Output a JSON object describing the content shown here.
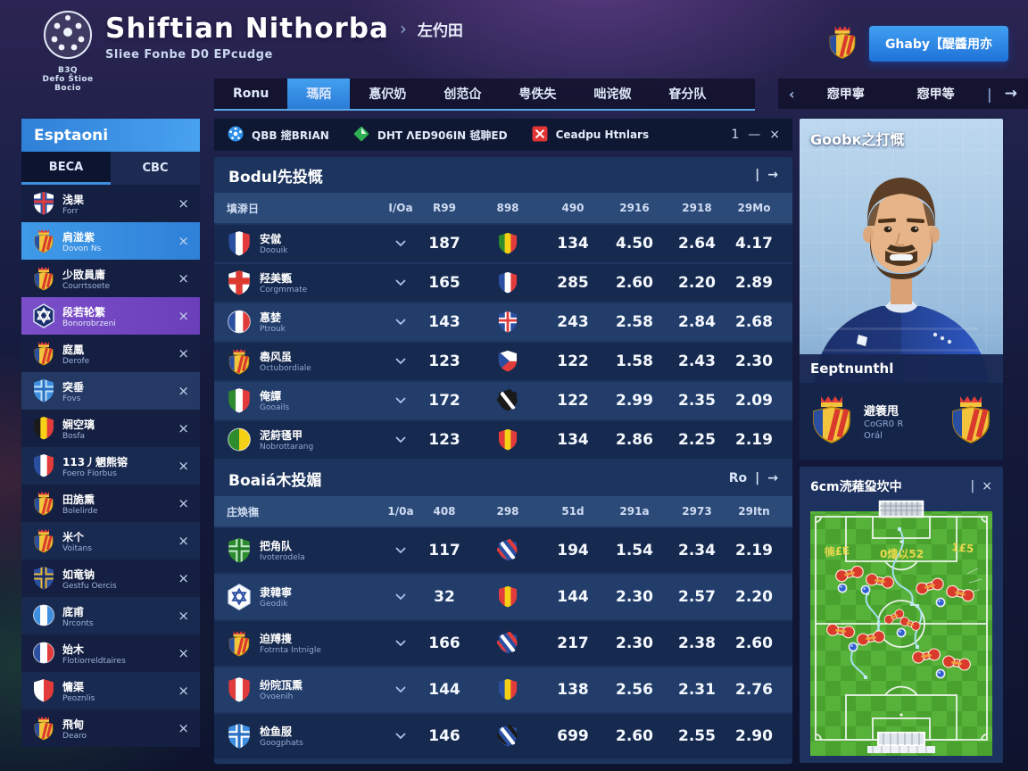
{
  "header": {
    "logo": [
      "B3Q",
      "Defo Štioe",
      "Bocio"
    ],
    "title": "Shiftian Nithorba",
    "crumb_sep": "›",
    "crumb": "左仢田",
    "subtitle": "Sliee Fonbe D0 EPcudge",
    "account_button": "Ghaby【醍醬用亦"
  },
  "nav": {
    "tabs": [
      {
        "label": "Ronu",
        "active": false
      },
      {
        "label": "瑪陌",
        "active": true
      },
      {
        "label": "惪伬奶",
        "active": false
      },
      {
        "label": "创范仚",
        "active": false
      },
      {
        "label": "甹佚失",
        "active": false
      },
      {
        "label": "咄诧伮",
        "active": false
      },
      {
        "label": "眘分队",
        "active": false
      }
    ],
    "league": {
      "prev": "‹",
      "labels": [
        "惌甲寧",
        "惌甲等"
      ],
      "sep": "|",
      "next": "→"
    }
  },
  "sidebar": {
    "title": "Esptaoni",
    "tabs": [
      {
        "label": "BECA",
        "active": true
      },
      {
        "label": "CBC",
        "active": false
      }
    ],
    "close_glyph": "×",
    "items": [
      {
        "name": "浅果",
        "sub": "Forr",
        "hl": null,
        "icon": {
          "kind": "cross",
          "colors": [
            "#ffffff",
            "#2b4fa0",
            "#e23b3b"
          ]
        }
      },
      {
        "name": "肩湴紫",
        "sub": "Dovon Ns",
        "hl": "blue",
        "icon": {
          "kind": "crest"
        }
      },
      {
        "name": "少敃員庸",
        "sub": "Courrtsoete",
        "hl": null,
        "icon": {
          "kind": "crest"
        }
      },
      {
        "name": "段若轮繁",
        "sub": "Bonorobrzeni",
        "hl": "purple",
        "icon": {
          "kind": "hex",
          "colors": [
            "#1b2f6e",
            "#ffffff"
          ]
        }
      },
      {
        "name": "庭鳳",
        "sub": "Derofe",
        "hl": null,
        "icon": {
          "kind": "crest"
        }
      },
      {
        "name": "突垂",
        "sub": "Fovs",
        "hl": "light",
        "icon": {
          "kind": "cross",
          "colors": [
            "#3f8fe0",
            "#bfe2f8",
            "#2a6fc0"
          ]
        }
      },
      {
        "name": "娴空璃",
        "sub": "Bosfa",
        "hl": null,
        "icon": {
          "kind": "shield",
          "colors": [
            "#1a1a1a",
            "#f7d117",
            "#e23b3b"
          ]
        }
      },
      {
        "name": "113丿魍熊镕",
        "sub": "Foero Fíorbus",
        "hl": null,
        "icon": {
          "kind": "shield",
          "colors": [
            "#2b4fa0",
            "#ffffff",
            "#e23b3b"
          ]
        }
      },
      {
        "name": "田㫉熏",
        "sub": "Bolelirde",
        "hl": null,
        "icon": {
          "kind": "crest"
        }
      },
      {
        "name": "米个",
        "sub": "Voitans",
        "hl": null,
        "icon": {
          "kind": "crest"
        }
      },
      {
        "name": "如竜钠",
        "sub": "Gestfu Oercis",
        "hl": null,
        "icon": {
          "kind": "cross",
          "colors": [
            "#2b4fa0",
            "#e8b93b",
            "#1a2f6e"
          ]
        }
      },
      {
        "name": "底甫",
        "sub": "Nrconts",
        "hl": null,
        "icon": {
          "kind": "circle",
          "colors": [
            "#3f8fe0",
            "#ffffff",
            "#3f8fe0"
          ]
        }
      },
      {
        "name": "始木",
        "sub": "Flotiorreldtaires",
        "hl": null,
        "icon": {
          "kind": "circle",
          "colors": [
            "#2b4fa0",
            "#ffffff",
            "#e23b3b"
          ]
        }
      },
      {
        "name": "慵渠",
        "sub": "Peoznlis",
        "hl": null,
        "icon": {
          "kind": "shield",
          "colors": [
            "#ffffff",
            "#e23b3b"
          ]
        }
      },
      {
        "name": "飛甸",
        "sub": "Dearo",
        "hl": null,
        "icon": {
          "kind": "crest"
        }
      }
    ]
  },
  "filters": {
    "items": [
      {
        "icon": "globe",
        "label": "QBB 㨸BRIAN"
      },
      {
        "icon": "diamond",
        "label": "DHT ΛED906IN 㲓䎶ED"
      },
      {
        "icon": "close",
        "label": "Ceadpu Htnlars"
      }
    ],
    "count": "1",
    "minimize": "—",
    "close": "×"
  },
  "tables": [
    {
      "title": "Bodul先投慨",
      "extra": "",
      "sep": "|",
      "arrow": "→",
      "columns": [
        "填㴁日",
        "I/Oa",
        "R99",
        "898",
        "490",
        "2916",
        "2918",
        "29Mo"
      ],
      "rows": [
        {
          "icon": {
            "kind": "shield",
            "colors": [
              "#2b4fa0",
              "#ffffff",
              "#e23b3b"
            ]
          },
          "name": "安僦",
          "sub": "Doouik",
          "light": false,
          "v1": "187",
          "flag": {
            "kind": "shield",
            "colors": [
              "#2e8b2e",
              "#f5d116",
              "#e23b3b"
            ]
          },
          "v2": "134",
          "v3": "4.50",
          "v4": "2.64",
          "v5": "4.17"
        },
        {
          "icon": {
            "kind": "cross",
            "colors": [
              "#ffffff",
              "#e23b3b",
              "#d93a2c"
            ]
          },
          "name": "羟美㽊",
          "sub": "Corgmmate",
          "light": false,
          "v1": "165",
          "flag": {
            "kind": "shield",
            "colors": [
              "#2b4fa0",
              "#ffffff",
              "#e23b3b"
            ]
          },
          "v2": "285",
          "v3": "2.60",
          "v4": "2.20",
          "v5": "2.89"
        },
        {
          "icon": {
            "kind": "circle",
            "colors": [
              "#2b4fa0",
              "#ffffff",
              "#e23b3b"
            ]
          },
          "name": "惪婪",
          "sub": "Ptrouk",
          "light": true,
          "v1": "143",
          "flag": {
            "kind": "cross",
            "colors": [
              "#2b4fa0",
              "#ffffff",
              "#e23b3b"
            ]
          },
          "v2": "243",
          "v3": "2.58",
          "v4": "2.84",
          "v5": "2.68"
        },
        {
          "icon": {
            "kind": "crest"
          },
          "name": "嶴风虽",
          "sub": "Octubordiale",
          "light": false,
          "v1": "123",
          "flag": {
            "kind": "wedge",
            "colors": [
              "#ffffff",
              "#e23b3b",
              "#2b4fa0"
            ]
          },
          "v2": "122",
          "v3": "1.58",
          "v4": "2.43",
          "v5": "2.30"
        },
        {
          "icon": {
            "kind": "shield",
            "colors": [
              "#2e8b2e",
              "#ffffff",
              "#e23b3b"
            ]
          },
          "name": "俺譚",
          "sub": "Gooails",
          "light": true,
          "v1": "172",
          "flag": {
            "kind": "diag",
            "colors": [
              "#1a1a1a",
              "#ffffff",
              "#1a1a1a"
            ]
          },
          "v2": "122",
          "v3": "2.99",
          "v4": "2.35",
          "v5": "2.09"
        },
        {
          "icon": {
            "kind": "circle",
            "colors": [
              "#2e8b2e",
              "#f5d116"
            ]
          },
          "name": "泥䈙㲧甲",
          "sub": "Nobrottarang",
          "light": false,
          "v1": "123",
          "flag": {
            "kind": "shield",
            "colors": [
              "#e23b3b",
              "#f5d116",
              "#e23b3b"
            ]
          },
          "v2": "134",
          "v3": "2.86",
          "v4": "2.25",
          "v5": "2.19"
        }
      ]
    },
    {
      "title": "Boaiá木投媚",
      "extra": "Ro",
      "sep": "|",
      "arrow": "→",
      "columns": [
        "庄㪱㣳",
        "1/0a",
        "408",
        "298",
        "51d",
        "291a",
        "2973",
        "29Itn"
      ],
      "rows": [
        {
          "icon": {
            "kind": "cross",
            "colors": [
              "#2e8b2e",
              "#bfe8c8",
              "#1f7a24"
            ]
          },
          "name": "把角队",
          "sub": "Ivoterodela",
          "light": false,
          "v1": "117",
          "flag": {
            "kind": "diag",
            "colors": [
              "#2b4fa0",
              "#ffffff",
              "#e23b3b"
            ]
          },
          "v2": "194",
          "v3": "1.54",
          "v4": "2.34",
          "v5": "2.19"
        },
        {
          "icon": {
            "kind": "hex",
            "colors": [
              "#ffffff",
              "#2b4fa0"
            ]
          },
          "name": "隶韓寧",
          "sub": "Geodik",
          "light": true,
          "v1": "32",
          "flag": {
            "kind": "shield",
            "colors": [
              "#e23b3b",
              "#f5d116",
              "#e23b3b"
            ]
          },
          "v2": "144",
          "v3": "2.30",
          "v4": "2.57",
          "v5": "2.20"
        },
        {
          "icon": {
            "kind": "crest"
          },
          "name": "迫䍸㨦",
          "sub": "Fotrnta Intnigle",
          "light": false,
          "v1": "166",
          "flag": {
            "kind": "diag",
            "colors": [
              "#2b4fa0",
              "#ffffff",
              "#e23b3b"
            ]
          },
          "v2": "217",
          "v3": "2.30",
          "v4": "2.38",
          "v5": "2.60"
        },
        {
          "icon": {
            "kind": "shield",
            "colors": [
              "#e23b3b",
              "#ffffff",
              "#e23b3b"
            ]
          },
          "name": "纷院㼗熏",
          "sub": "Ovoenih",
          "light": true,
          "v1": "144",
          "flag": {
            "kind": "shield",
            "colors": [
              "#2b4fa0",
              "#f5d116",
              "#e23b3b"
            ]
          },
          "v2": "138",
          "v3": "2.56",
          "v4": "2.31",
          "v5": "2.76"
        },
        {
          "icon": {
            "kind": "cross",
            "colors": [
              "#3f8fe0",
              "#ffffff",
              "#2a6fc0"
            ]
          },
          "name": "检鱼服",
          "sub": "Googphats",
          "light": false,
          "v1": "146",
          "flag": {
            "kind": "diag",
            "colors": [
              "#2b4fa0",
              "#ffffff",
              "#1a1a1a"
            ]
          },
          "v2": "699",
          "v3": "2.60",
          "v4": "2.55",
          "v5": "2.90"
        }
      ]
    }
  ],
  "player_panel": {
    "title": "Goobк之打慨",
    "band": "Eeptnunthl",
    "matchup": {
      "name": "避簑甩",
      "line1": "CoGR0 R",
      "line2": "Orál"
    }
  },
  "pitch_panel": {
    "title": "6cm涜䕌㺱坎中",
    "sep": "|",
    "close": "×",
    "annotations": [
      "㣮£E",
      "0㸆以52",
      "1£5"
    ]
  },
  "colors": {
    "accent": "#2e8fe8",
    "marker_red": "#d93a2c",
    "marker_blue": "#2f5fd0",
    "pitch_green": "#4aa22e"
  }
}
